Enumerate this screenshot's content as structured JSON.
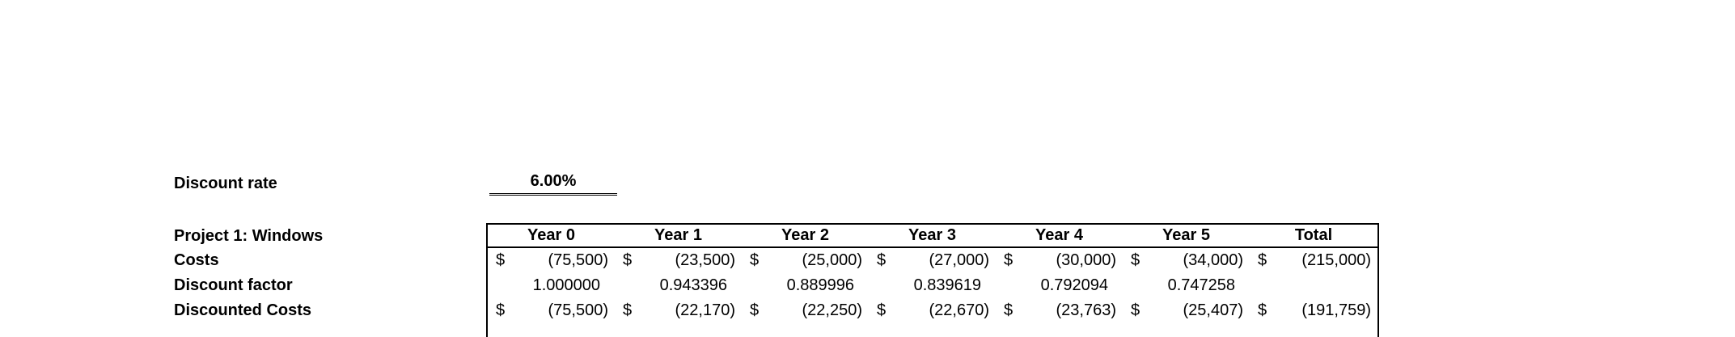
{
  "currency_symbol": "$",
  "discount_rate": {
    "label": "Discount rate",
    "value": "6.00%"
  },
  "project_table": {
    "title": "Project 1: Windows",
    "columns": [
      "Year 0",
      "Year 1",
      "Year 2",
      "Year 3",
      "Year 4",
      "Year 5",
      "Total"
    ],
    "rows": [
      {
        "label": "Costs",
        "values": [
          "(75,500)",
          "(23,500)",
          "(25,000)",
          "(27,000)",
          "(30,000)",
          "(34,000)",
          "(215,000)"
        ]
      },
      {
        "label": "Discount factor",
        "values": [
          "1.000000",
          "0.943396",
          "0.889996",
          "0.839619",
          "0.792094",
          "0.747258",
          ""
        ]
      },
      {
        "label": "Discounted Costs",
        "values": [
          "(75,500)",
          "(22,170)",
          "(22,250)",
          "(22,670)",
          "(23,763)",
          "(25,407)",
          "(191,759)"
        ]
      }
    ]
  }
}
